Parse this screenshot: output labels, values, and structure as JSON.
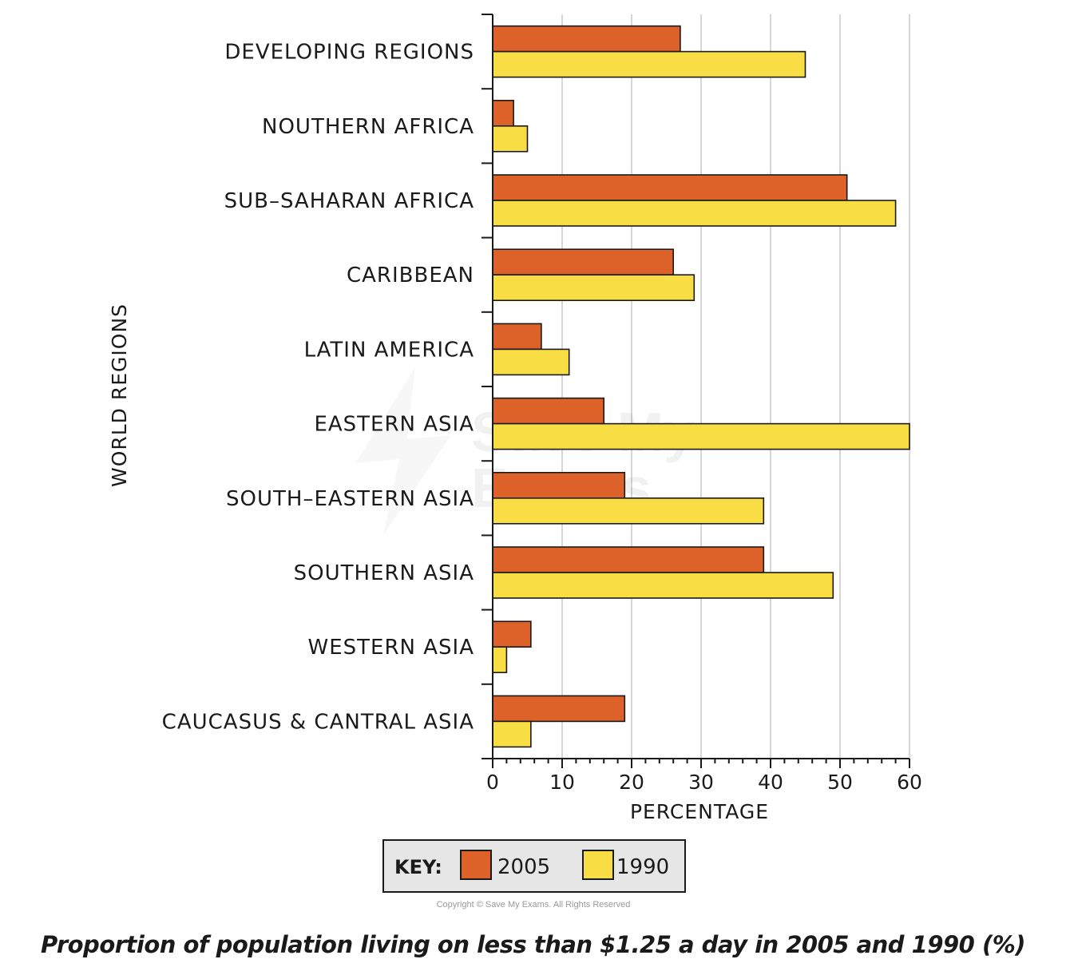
{
  "chart_data": {
    "type": "bar",
    "orientation": "horizontal",
    "caption": "Proportion of population living on less than $1.25 a day in 2005 and 1990 (%)",
    "xlabel": "PERCENTAGE",
    "ylabel": "WORLD REGIONS",
    "xlim": [
      0,
      60
    ],
    "xticks": [
      0,
      10,
      20,
      30,
      40,
      50,
      60
    ],
    "grid": "vertical",
    "categories": [
      "DEVELOPING REGIONS",
      "NOUTHERN AFRICA",
      "SUB–SAHARAN AFRICA",
      "CARIBBEAN",
      "LATIN AMERICA",
      "EASTERN ASIA",
      "SOUTH–EASTERN ASIA",
      "SOUTHERN ASIA",
      "WESTERN ASIA",
      "CAUCASUS & CANTRAL ASIA"
    ],
    "series": [
      {
        "name": "2005",
        "color": "#dc622a",
        "values": [
          27,
          3,
          51,
          26,
          7,
          16,
          19,
          39,
          5.5,
          19
        ]
      },
      {
        "name": "1990",
        "color": "#f9dd44",
        "values": [
          45,
          5,
          58,
          29,
          11,
          60,
          39,
          49,
          2,
          5.5
        ]
      }
    ],
    "legend": {
      "title": "KEY:",
      "placement": "bottom-center"
    }
  },
  "watermark": {
    "line1": "Save My",
    "line2": "Exams"
  },
  "copyright": "Copyright © Save My Exams. All Rights Reserved"
}
